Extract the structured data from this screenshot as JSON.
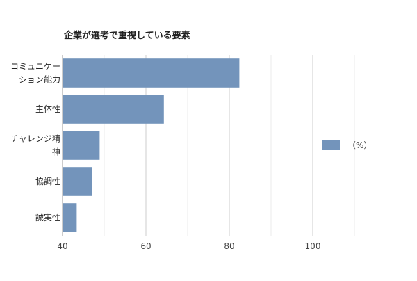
{
  "chart_data": {
    "type": "bar",
    "orientation": "horizontal",
    "title": "企業が選考で重視している要素",
    "categories": [
      [
        "コミュニケー",
        "ション能力"
      ],
      [
        "主体性"
      ],
      [
        "チャレンジ精",
        "神"
      ],
      [
        "協調性"
      ],
      [
        "誠実性"
      ]
    ],
    "series": [
      {
        "name": "（%）",
        "values": [
          82.4,
          64.3,
          48.9,
          47.0,
          43.4
        ],
        "color": "#7394bb"
      }
    ],
    "xlim": [
      40,
      120
    ],
    "xticks": [
      40,
      60,
      80,
      100
    ],
    "xlabel": "",
    "ylabel": "",
    "grid": true,
    "legend": "right"
  }
}
